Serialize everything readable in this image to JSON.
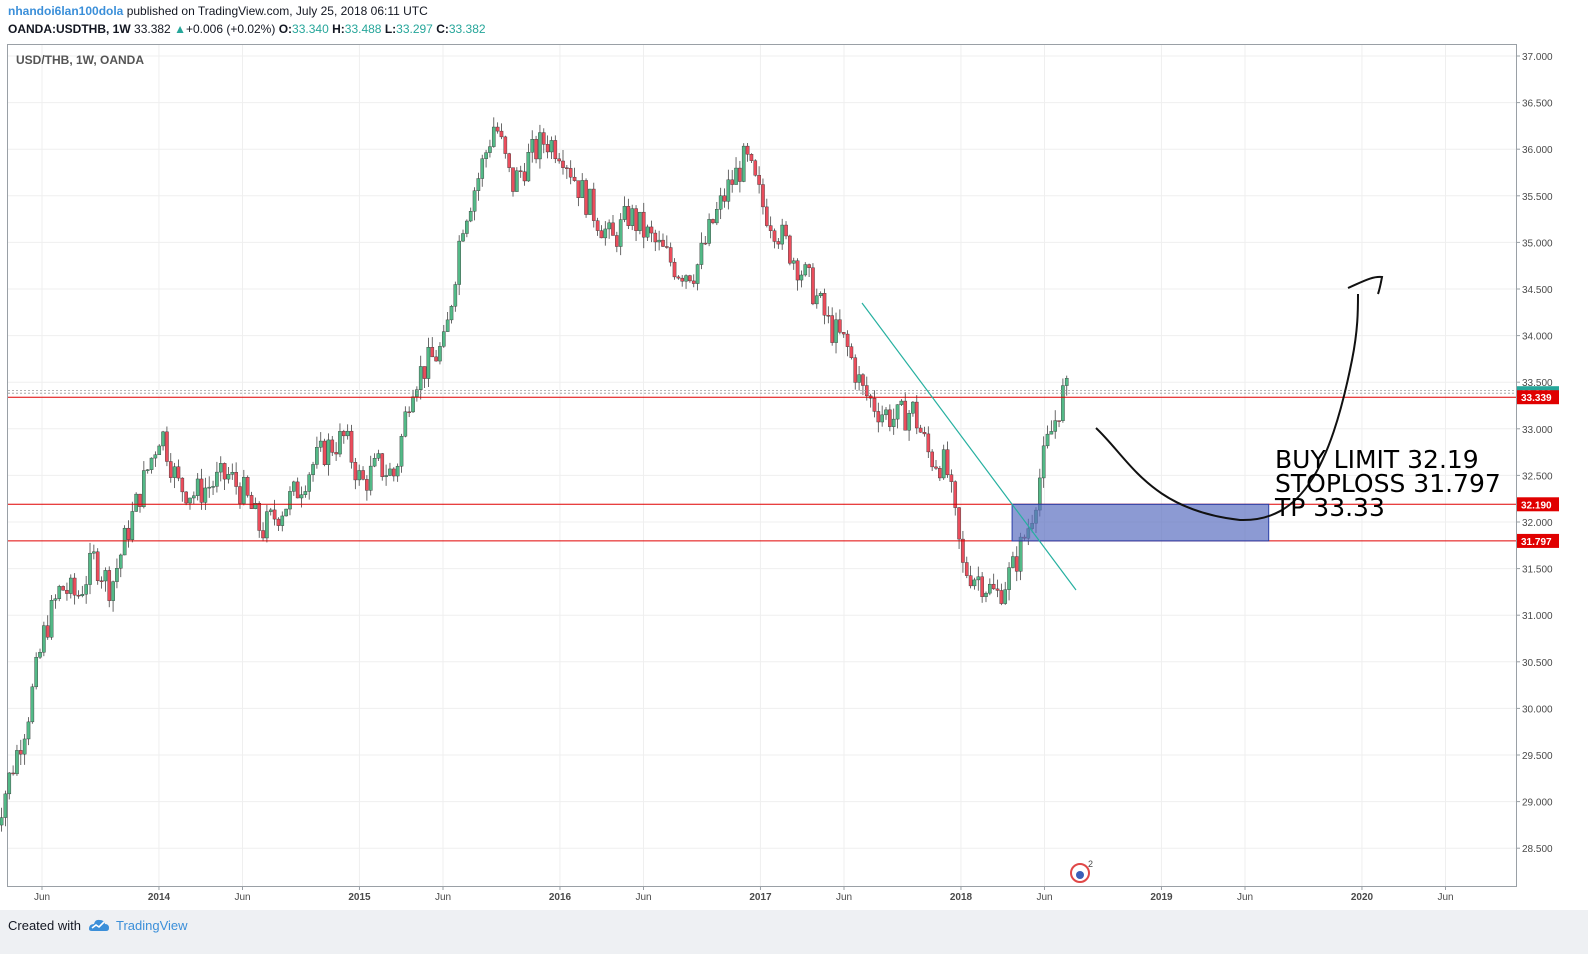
{
  "header": {
    "author": "nhandoi6lan100dola",
    "published": "published on TradingView.com, July 25, 2018 06:11 UTC",
    "symbol": "OANDA:USDTHB, 1W",
    "last": "33.382",
    "change_arrow": "▲",
    "change": "+0.006 (+0.02%)",
    "o_label": "O:",
    "o_val": "33.340",
    "h_label": "H:",
    "h_val": "33.488",
    "l_label": "L:",
    "l_val": "33.297",
    "c_label": "C:",
    "c_val": "33.382"
  },
  "chart_label": "USD/THB, 1W, OANDA",
  "annotation": {
    "line1": "BUY LIMIT 32.19",
    "line2": "STOPLOSS 31.797",
    "line3": "TP 33.33"
  },
  "footer": {
    "created_with": "Created with",
    "brand": "TradingView"
  },
  "colors": {
    "up": "#26a69a",
    "down": "#ef5350",
    "candle_up_body": "#53b987",
    "candle_down_body": "#eb4d5c",
    "level_line": "#e00000",
    "zone_fill": "#5b6fc0",
    "trendline": "#26b0a0",
    "accent": "#3b8fd9"
  },
  "chart_data": {
    "type": "candlestick",
    "title": "USD/THB, 1W, OANDA",
    "ylim": [
      28.3,
      37.1
    ],
    "y_ticks": [
      "37.000",
      "36.500",
      "36.000",
      "35.500",
      "35.000",
      "34.500",
      "34.000",
      "33.500",
      "33.000",
      "32.500",
      "32.000",
      "31.500",
      "31.000",
      "30.500",
      "30.000",
      "29.500",
      "29.000",
      "28.500"
    ],
    "x_ticks": [
      "Jun",
      "2014",
      "Jun",
      "2015",
      "Jun",
      "2016",
      "Jun",
      "2017",
      "Jun",
      "2018",
      "Jun",
      "2019",
      "Jun",
      "2020",
      "Jun"
    ],
    "price_labels": [
      {
        "value": 33.382,
        "text": "33.382",
        "color": "#26a69a"
      },
      {
        "value": 33.339,
        "text": "33.339",
        "color": "#e00000"
      },
      {
        "value": 32.19,
        "text": "32.190",
        "color": "#e00000"
      },
      {
        "value": 31.797,
        "text": "31.797",
        "color": "#e00000"
      }
    ],
    "levels": [
      33.339,
      32.19,
      31.797
    ],
    "close_path": [
      [
        "2013-03",
        28.7
      ],
      [
        "2013-04",
        29.3
      ],
      [
        "2013-05",
        29.9
      ],
      [
        "2013-06",
        30.8
      ],
      [
        "2013-07",
        31.3
      ],
      [
        "2013-08",
        31.2
      ],
      [
        "2013-09",
        31.6
      ],
      [
        "2013-10",
        31.3
      ],
      [
        "2013-11",
        31.9
      ],
      [
        "2014-01",
        33.0
      ],
      [
        "2014-02",
        32.4
      ],
      [
        "2014-03",
        32.3
      ],
      [
        "2014-04",
        32.4
      ],
      [
        "2014-05",
        32.5
      ],
      [
        "2014-06",
        32.3
      ],
      [
        "2014-07",
        31.9
      ],
      [
        "2014-08",
        32.1
      ],
      [
        "2014-09",
        32.3
      ],
      [
        "2014-10",
        32.6
      ],
      [
        "2014-11",
        32.8
      ],
      [
        "2014-12",
        32.9
      ],
      [
        "2015-01",
        32.4
      ],
      [
        "2015-02",
        32.6
      ],
      [
        "2015-03",
        32.5
      ],
      [
        "2015-04",
        33.5
      ],
      [
        "2015-05",
        33.7
      ],
      [
        "2015-06",
        33.9
      ],
      [
        "2015-07",
        35.2
      ],
      [
        "2015-08",
        35.7
      ],
      [
        "2015-09",
        36.3
      ],
      [
        "2015-10",
        35.6
      ],
      [
        "2015-11",
        35.9
      ],
      [
        "2015-12",
        36.1
      ],
      [
        "2016-01",
        36.0
      ],
      [
        "2016-02",
        35.6
      ],
      [
        "2016-03",
        35.3
      ],
      [
        "2016-04",
        35.0
      ],
      [
        "2016-05",
        35.3
      ],
      [
        "2016-06",
        35.1
      ],
      [
        "2016-07",
        34.9
      ],
      [
        "2016-08",
        34.7
      ],
      [
        "2016-09",
        34.7
      ],
      [
        "2016-10",
        35.2
      ],
      [
        "2016-11",
        35.6
      ],
      [
        "2016-12",
        35.9
      ],
      [
        "2017-01",
        35.4
      ],
      [
        "2017-02",
        35.1
      ],
      [
        "2017-03",
        34.8
      ],
      [
        "2017-04",
        34.5
      ],
      [
        "2017-05",
        34.1
      ],
      [
        "2017-06",
        33.9
      ],
      [
        "2017-07",
        33.4
      ],
      [
        "2017-08",
        33.2
      ],
      [
        "2017-09",
        33.1
      ],
      [
        "2017-10",
        33.2
      ],
      [
        "2017-11",
        32.7
      ],
      [
        "2017-12",
        32.6
      ],
      [
        "2018-01",
        31.5
      ],
      [
        "2018-02",
        31.4
      ],
      [
        "2018-03",
        31.2
      ],
      [
        "2018-04",
        31.5
      ],
      [
        "2018-05",
        32.0
      ],
      [
        "2018-06",
        32.8
      ],
      [
        "2018-07",
        33.38
      ]
    ]
  }
}
